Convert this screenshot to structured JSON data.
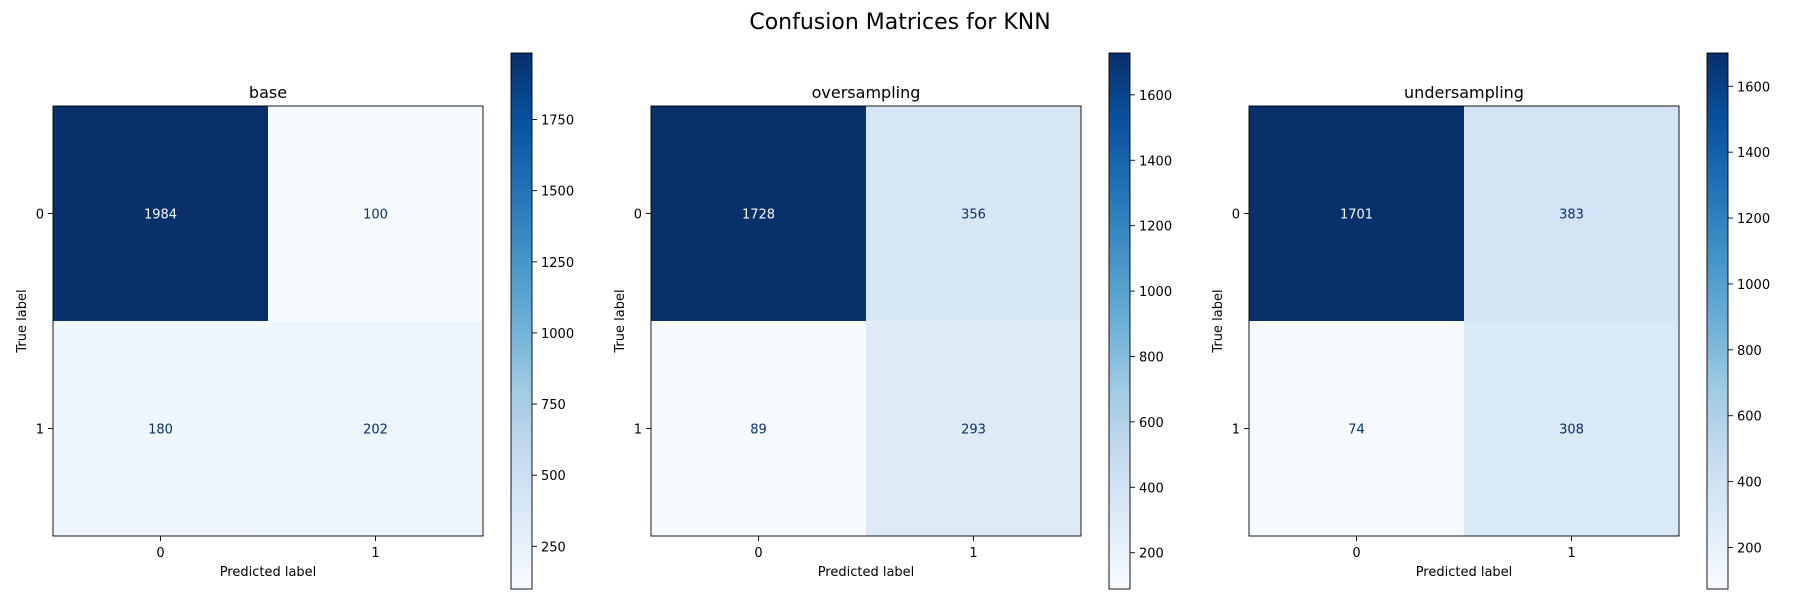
{
  "figure": {
    "title": "Confusion Matrices for KNN"
  },
  "colormap": {
    "name": "Blues",
    "low": "#f7fbff",
    "high": "#08306b",
    "dark_text": "#08306b",
    "light_text": "#f7fbff"
  },
  "chart_data": [
    {
      "type": "heatmap",
      "title": "base",
      "xlabel": "Predicted label",
      "ylabel": "True label",
      "x_ticks": [
        "0",
        "1"
      ],
      "y_ticks": [
        "0",
        "1"
      ],
      "matrix": [
        [
          1984,
          100
        ],
        [
          180,
          202
        ]
      ],
      "colorbar": {
        "min": 100,
        "max": 1984,
        "ticks": [
          250,
          500,
          750,
          1000,
          1250,
          1500,
          1750
        ]
      }
    },
    {
      "type": "heatmap",
      "title": "oversampling",
      "xlabel": "Predicted label",
      "ylabel": "True label",
      "x_ticks": [
        "0",
        "1"
      ],
      "y_ticks": [
        "0",
        "1"
      ],
      "matrix": [
        [
          1728,
          356
        ],
        [
          89,
          293
        ]
      ],
      "colorbar": {
        "min": 89,
        "max": 1728,
        "ticks": [
          200,
          400,
          600,
          800,
          1000,
          1200,
          1400,
          1600
        ]
      }
    },
    {
      "type": "heatmap",
      "title": "undersampling",
      "xlabel": "Predicted label",
      "ylabel": "True label",
      "x_ticks": [
        "0",
        "1"
      ],
      "y_ticks": [
        "0",
        "1"
      ],
      "matrix": [
        [
          1701,
          383
        ],
        [
          74,
          308
        ]
      ],
      "colorbar": {
        "min": 74,
        "max": 1701,
        "ticks": [
          200,
          400,
          600,
          800,
          1000,
          1200,
          1400,
          1600
        ]
      }
    }
  ]
}
